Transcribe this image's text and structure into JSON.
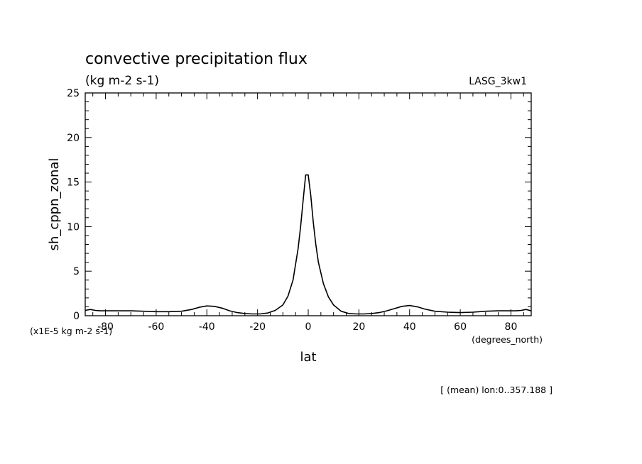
{
  "colors": {
    "background": "#ffffff",
    "foreground": "#000000"
  },
  "chart_data": {
    "type": "line",
    "title": "convective precipitation flux",
    "subtitle": "(kg m-2 s-1)",
    "model_label": "LASG_3kw1",
    "xlabel": "lat",
    "xunits": "(degrees_north)",
    "ylabel": "sh_cppn_zonal",
    "yunits": "(x1E-5 kg m-2 s-1)",
    "footnote": "[ (mean) lon:0..357.188 ]",
    "xlim": [
      -88,
      88
    ],
    "ylim": [
      0,
      25
    ],
    "xticks": [
      -80,
      -60,
      -40,
      -20,
      0,
      20,
      40,
      60,
      80
    ],
    "xtick_labels": [
      "-80",
      "-60",
      "-40",
      "-20",
      "0",
      "20",
      "40",
      "60",
      "80"
    ],
    "yticks": [
      0,
      5,
      10,
      15,
      20,
      25
    ],
    "ytick_labels": [
      "0",
      "5",
      "10",
      "15",
      "20",
      "25"
    ],
    "grid": false,
    "series": [
      {
        "x": [
          -88,
          -86,
          -84,
          -82,
          -80,
          -75,
          -70,
          -65,
          -60,
          -55,
          -50,
          -46,
          -43,
          -40,
          -37,
          -34,
          -31,
          -28,
          -25,
          -22,
          -19,
          -16,
          -13,
          -10,
          -8,
          -6,
          -4,
          -3,
          -2,
          -1,
          0,
          1,
          2,
          3,
          4,
          6,
          8,
          10,
          13,
          16,
          19,
          22,
          25,
          28,
          31,
          34,
          37,
          40,
          43,
          46,
          50,
          55,
          60,
          65,
          70,
          75,
          80,
          82,
          84,
          86,
          88
        ],
        "y": [
          0.6,
          0.7,
          0.6,
          0.55,
          0.55,
          0.55,
          0.55,
          0.5,
          0.45,
          0.45,
          0.5,
          0.7,
          0.95,
          1.1,
          1.05,
          0.85,
          0.55,
          0.35,
          0.25,
          0.2,
          0.2,
          0.3,
          0.6,
          1.2,
          2.2,
          4.0,
          7.5,
          10.0,
          13.0,
          15.8,
          15.8,
          13.5,
          10.5,
          8.0,
          6.0,
          3.6,
          2.1,
          1.2,
          0.5,
          0.25,
          0.2,
          0.2,
          0.25,
          0.35,
          0.55,
          0.8,
          1.05,
          1.15,
          1.0,
          0.75,
          0.5,
          0.4,
          0.35,
          0.4,
          0.5,
          0.55,
          0.55,
          0.55,
          0.6,
          0.7,
          0.55
        ]
      }
    ]
  }
}
